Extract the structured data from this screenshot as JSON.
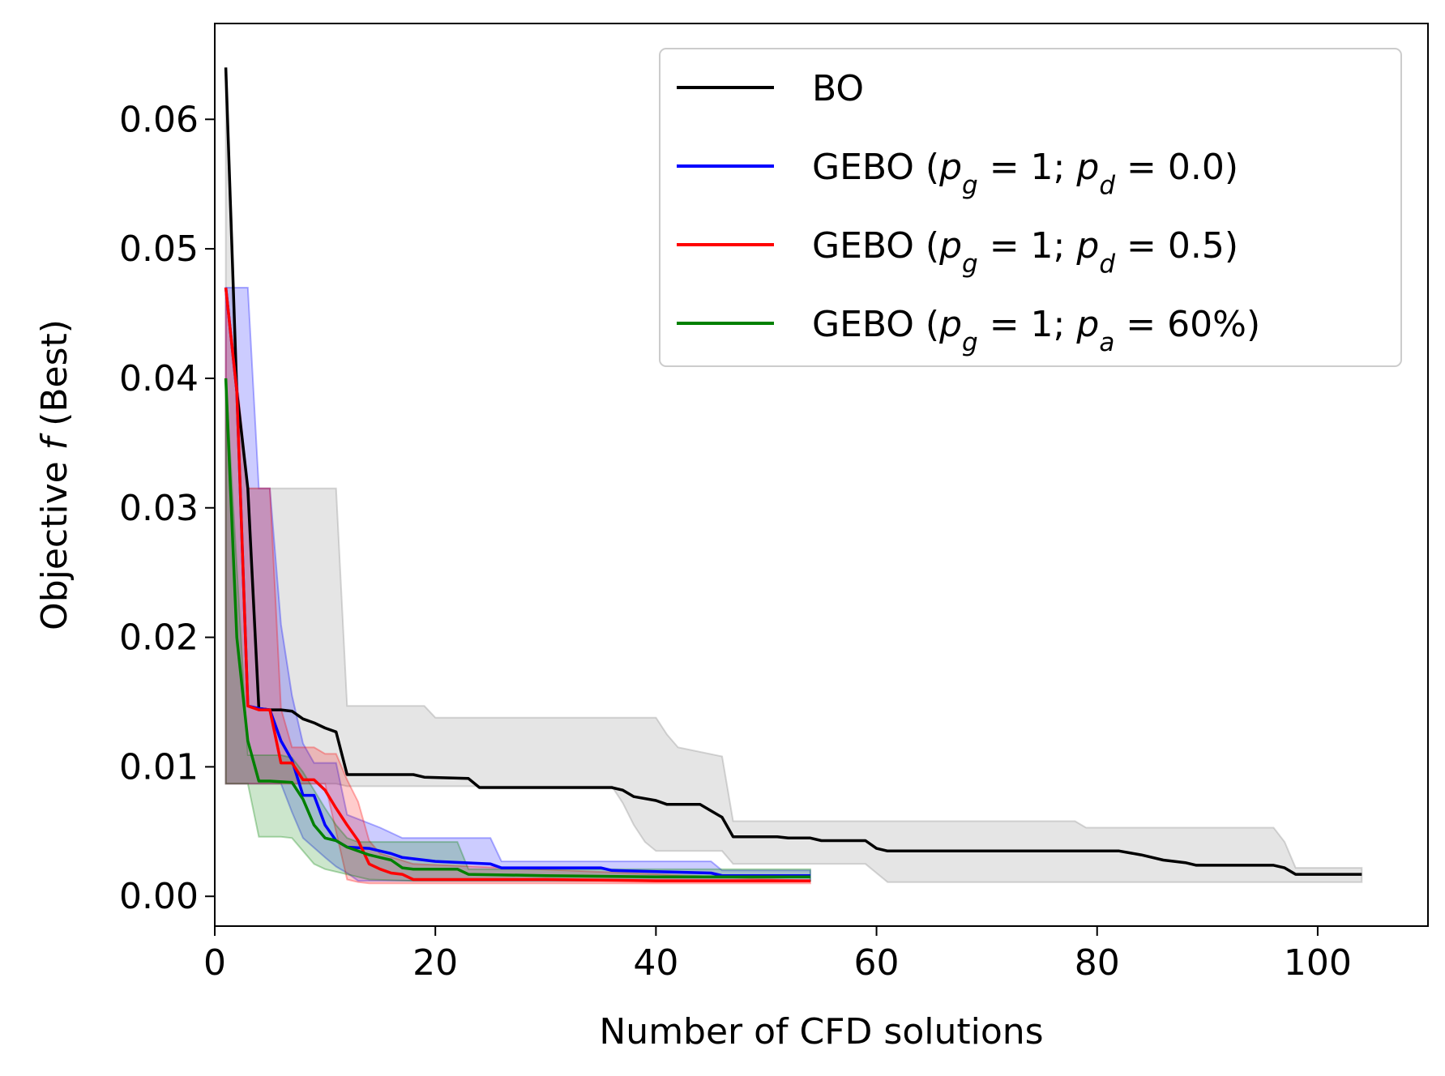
{
  "chart_data": {
    "type": "line",
    "title": "",
    "xlabel": "Number of CFD solutions",
    "ylabel_parts": [
      "Objective ",
      "f",
      " (Best)"
    ],
    "xlim": [
      0,
      110
    ],
    "ylim": [
      -0.0023,
      0.0674
    ],
    "xticks": [
      0,
      20,
      40,
      60,
      80,
      100
    ],
    "xtick_labels": [
      "0",
      "20",
      "40",
      "60",
      "80",
      "100"
    ],
    "yticks": [
      0.0,
      0.01,
      0.02,
      0.03,
      0.04,
      0.05,
      0.06
    ],
    "ytick_labels": [
      "0.00",
      "0.01",
      "0.02",
      "0.03",
      "0.04",
      "0.05",
      "0.06"
    ],
    "grid": false,
    "legend_position": "top-right",
    "series": [
      {
        "name": "BO",
        "legend": [
          {
            "t": "BO"
          }
        ],
        "color": "#000000",
        "band_color": "#7f7f7f",
        "mean": [
          [
            1,
            0.064
          ],
          [
            2,
            0.039
          ],
          [
            3,
            0.0315
          ],
          [
            4,
            0.0145
          ],
          [
            5,
            0.0144
          ],
          [
            6,
            0.0144
          ],
          [
            7,
            0.0143
          ],
          [
            8,
            0.0137
          ],
          [
            9,
            0.0134
          ],
          [
            10,
            0.013
          ],
          [
            11,
            0.0127
          ],
          [
            12,
            0.0094
          ],
          [
            18,
            0.0094
          ],
          [
            19,
            0.0092
          ],
          [
            23,
            0.0091
          ],
          [
            24,
            0.0084
          ],
          [
            36,
            0.0084
          ],
          [
            37,
            0.0082
          ],
          [
            38,
            0.0077
          ],
          [
            40,
            0.0074
          ],
          [
            41,
            0.0071
          ],
          [
            44,
            0.0071
          ],
          [
            45,
            0.0066
          ],
          [
            46,
            0.0061
          ],
          [
            47,
            0.0046
          ],
          [
            51,
            0.0046
          ],
          [
            52,
            0.0045
          ],
          [
            54,
            0.0045
          ],
          [
            55,
            0.0043
          ],
          [
            59,
            0.0043
          ],
          [
            60,
            0.0037
          ],
          [
            61,
            0.0035
          ],
          [
            82,
            0.0035
          ],
          [
            84,
            0.0032
          ],
          [
            86,
            0.0028
          ],
          [
            88,
            0.0026
          ],
          [
            89,
            0.0024
          ],
          [
            96,
            0.0024
          ],
          [
            97,
            0.0022
          ],
          [
            98,
            0.0017
          ],
          [
            104,
            0.0017
          ]
        ],
        "upper": [
          [
            1,
            0.064
          ],
          [
            2,
            0.039
          ],
          [
            3,
            0.0315
          ],
          [
            11,
            0.0315
          ],
          [
            12,
            0.0147
          ],
          [
            19,
            0.0147
          ],
          [
            20,
            0.0138
          ],
          [
            40,
            0.0138
          ],
          [
            41,
            0.0125
          ],
          [
            42,
            0.0115
          ],
          [
            46,
            0.0108
          ],
          [
            47,
            0.0058
          ],
          [
            78,
            0.0058
          ],
          [
            79,
            0.0053
          ],
          [
            96,
            0.0053
          ],
          [
            97,
            0.0042
          ],
          [
            98,
            0.0022
          ],
          [
            104,
            0.0022
          ]
        ],
        "lower": [
          [
            1,
            0.0087
          ],
          [
            11,
            0.0087
          ],
          [
            12,
            0.0085
          ],
          [
            36,
            0.0085
          ],
          [
            37,
            0.0072
          ],
          [
            38,
            0.0055
          ],
          [
            39,
            0.0042
          ],
          [
            40,
            0.0035
          ],
          [
            46,
            0.0035
          ],
          [
            47,
            0.0025
          ],
          [
            59,
            0.0025
          ],
          [
            60,
            0.0018
          ],
          [
            61,
            0.0011
          ],
          [
            104,
            0.0011
          ]
        ]
      },
      {
        "name": "GEBO (p_g = 1; p_d = 0.0)",
        "legend": [
          {
            "t": "GEBO ("
          },
          {
            "t": "p",
            "i": true
          },
          {
            "t": "g",
            "sub": true,
            "i": true
          },
          {
            "t": " = 1; "
          },
          {
            "t": "p",
            "i": true
          },
          {
            "t": "d",
            "sub": true,
            "i": true
          },
          {
            "t": " = 0.0)"
          }
        ],
        "color": "#0000ff",
        "band_color": "#0000ff",
        "mean": [
          [
            1,
            0.047
          ],
          [
            2,
            0.039
          ],
          [
            3,
            0.0147
          ],
          [
            4,
            0.0145
          ],
          [
            5,
            0.0144
          ],
          [
            6,
            0.012
          ],
          [
            7,
            0.0105
          ],
          [
            8,
            0.0078
          ],
          [
            9,
            0.0078
          ],
          [
            10,
            0.0055
          ],
          [
            11,
            0.0043
          ],
          [
            12,
            0.0038
          ],
          [
            14,
            0.0037
          ],
          [
            15,
            0.0035
          ],
          [
            16,
            0.0033
          ],
          [
            17,
            0.003
          ],
          [
            18,
            0.0029
          ],
          [
            20,
            0.0027
          ],
          [
            25,
            0.0025
          ],
          [
            26,
            0.0022
          ],
          [
            35,
            0.0022
          ],
          [
            36,
            0.002
          ],
          [
            45,
            0.0018
          ],
          [
            46,
            0.0016
          ],
          [
            54,
            0.0016
          ]
        ],
        "upper": [
          [
            1,
            0.047
          ],
          [
            3,
            0.047
          ],
          [
            4,
            0.0315
          ],
          [
            5,
            0.0315
          ],
          [
            6,
            0.021
          ],
          [
            7,
            0.0155
          ],
          [
            8,
            0.0118
          ],
          [
            9,
            0.0103
          ],
          [
            11,
            0.0103
          ],
          [
            12,
            0.0063
          ],
          [
            15,
            0.0053
          ],
          [
            17,
            0.0045
          ],
          [
            25,
            0.0045
          ],
          [
            26,
            0.0027
          ],
          [
            45,
            0.0027
          ],
          [
            46,
            0.002
          ],
          [
            54,
            0.002
          ]
        ],
        "lower": [
          [
            1,
            0.0087
          ],
          [
            6,
            0.0087
          ],
          [
            7,
            0.0065
          ],
          [
            8,
            0.0045
          ],
          [
            10,
            0.003
          ],
          [
            11,
            0.0023
          ],
          [
            12,
            0.0018
          ],
          [
            13,
            0.0012
          ],
          [
            16,
            0.0012
          ],
          [
            54,
            0.0012
          ]
        ]
      },
      {
        "name": "GEBO (p_g = 1; p_d = 0.5)",
        "legend": [
          {
            "t": "GEBO ("
          },
          {
            "t": "p",
            "i": true
          },
          {
            "t": "g",
            "sub": true,
            "i": true
          },
          {
            "t": " = 1; "
          },
          {
            "t": "p",
            "i": true
          },
          {
            "t": "d",
            "sub": true,
            "i": true
          },
          {
            "t": " = 0.5)"
          }
        ],
        "color": "#ff0000",
        "band_color": "#ff0000",
        "mean": [
          [
            1,
            0.047
          ],
          [
            2,
            0.039
          ],
          [
            3,
            0.0147
          ],
          [
            4,
            0.0144
          ],
          [
            5,
            0.0144
          ],
          [
            6,
            0.0103
          ],
          [
            7,
            0.0103
          ],
          [
            8,
            0.009
          ],
          [
            9,
            0.009
          ],
          [
            10,
            0.0082
          ],
          [
            11,
            0.0068
          ],
          [
            12,
            0.0055
          ],
          [
            13,
            0.0043
          ],
          [
            14,
            0.0025
          ],
          [
            15,
            0.0021
          ],
          [
            16,
            0.0018
          ],
          [
            17,
            0.0017
          ],
          [
            18,
            0.0013
          ],
          [
            30,
            0.0013
          ],
          [
            40,
            0.0012
          ],
          [
            54,
            0.0012
          ]
        ],
        "upper": [
          [
            1,
            0.047
          ],
          [
            2,
            0.04
          ],
          [
            3,
            0.0315
          ],
          [
            5,
            0.0315
          ],
          [
            6,
            0.0145
          ],
          [
            7,
            0.0115
          ],
          [
            8,
            0.0115
          ],
          [
            9,
            0.0115
          ],
          [
            10,
            0.011
          ],
          [
            11,
            0.011
          ],
          [
            12,
            0.009
          ],
          [
            13,
            0.0073
          ],
          [
            14,
            0.0043
          ],
          [
            15,
            0.0033
          ],
          [
            18,
            0.0025
          ],
          [
            54,
            0.0012
          ]
        ],
        "lower": [
          [
            1,
            0.0087
          ],
          [
            10,
            0.0087
          ],
          [
            11,
            0.005
          ],
          [
            12,
            0.0013
          ],
          [
            13,
            0.0011
          ],
          [
            14,
            0.001
          ],
          [
            54,
            0.001
          ]
        ]
      },
      {
        "name": "GEBO (p_g = 1; p_a = 60%)",
        "legend": [
          {
            "t": "GEBO ("
          },
          {
            "t": "p",
            "i": true
          },
          {
            "t": "g",
            "sub": true,
            "i": true
          },
          {
            "t": " = 1; "
          },
          {
            "t": "p",
            "i": true
          },
          {
            "t": "a",
            "sub": true,
            "i": true
          },
          {
            "t": " = 60%)"
          }
        ],
        "color": "#008000",
        "band_color": "#008000",
        "mean": [
          [
            1,
            0.04
          ],
          [
            2,
            0.02
          ],
          [
            3,
            0.012
          ],
          [
            4,
            0.0089
          ],
          [
            5,
            0.0089
          ],
          [
            7,
            0.0088
          ],
          [
            8,
            0.0075
          ],
          [
            9,
            0.0055
          ],
          [
            10,
            0.0045
          ],
          [
            11,
            0.0043
          ],
          [
            12,
            0.0038
          ],
          [
            14,
            0.0032
          ],
          [
            15,
            0.003
          ],
          [
            16,
            0.0028
          ],
          [
            17,
            0.0022
          ],
          [
            18,
            0.0021
          ],
          [
            22,
            0.0021
          ],
          [
            23,
            0.0017
          ],
          [
            30,
            0.0016
          ],
          [
            40,
            0.0015
          ],
          [
            54,
            0.0015
          ]
        ],
        "upper": [
          [
            1,
            0.04
          ],
          [
            3,
            0.0109
          ],
          [
            6,
            0.0109
          ],
          [
            7,
            0.0107
          ],
          [
            8,
            0.0096
          ],
          [
            9,
            0.0082
          ],
          [
            10,
            0.0068
          ],
          [
            11,
            0.0055
          ],
          [
            12,
            0.0045
          ],
          [
            13,
            0.0042
          ],
          [
            22,
            0.0042
          ],
          [
            23,
            0.0021
          ],
          [
            54,
            0.0021
          ]
        ],
        "lower": [
          [
            1,
            0.0087
          ],
          [
            3,
            0.0087
          ],
          [
            4,
            0.0046
          ],
          [
            6,
            0.0046
          ],
          [
            7,
            0.0045
          ],
          [
            8,
            0.0035
          ],
          [
            9,
            0.0025
          ],
          [
            10,
            0.0021
          ],
          [
            14,
            0.0013
          ],
          [
            18,
            0.0012
          ],
          [
            54,
            0.0012
          ]
        ]
      }
    ]
  }
}
